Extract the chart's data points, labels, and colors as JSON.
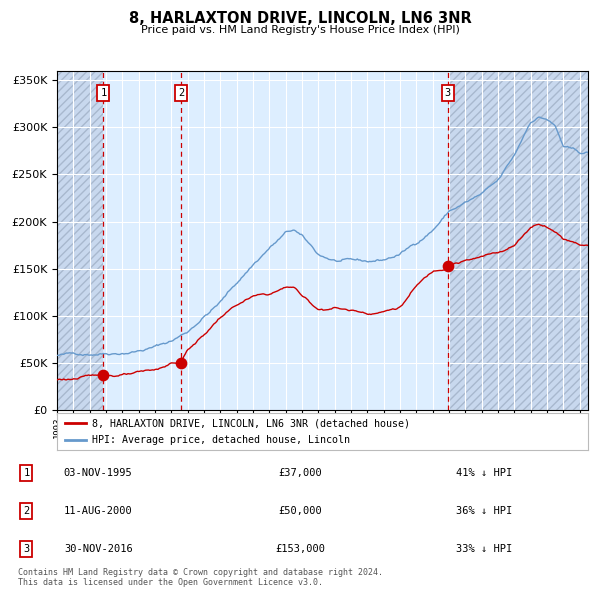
{
  "title": "8, HARLAXTON DRIVE, LINCOLN, LN6 3NR",
  "subtitle": "Price paid vs. HM Land Registry's House Price Index (HPI)",
  "purchases": [
    {
      "num": 1,
      "date": "03-NOV-1995",
      "price": 37000,
      "label": "41% ↓ HPI",
      "x_year": 1995.84
    },
    {
      "num": 2,
      "date": "11-AUG-2000",
      "price": 50000,
      "label": "36% ↓ HPI",
      "x_year": 2000.61
    },
    {
      "num": 3,
      "date": "30-NOV-2016",
      "price": 153000,
      "label": "33% ↓ HPI",
      "x_year": 2016.91
    }
  ],
  "legend_property": "8, HARLAXTON DRIVE, LINCOLN, LN6 3NR (detached house)",
  "legend_hpi": "HPI: Average price, detached house, Lincoln",
  "footer1": "Contains HM Land Registry data © Crown copyright and database right 2024.",
  "footer2": "This data is licensed under the Open Government Licence v3.0.",
  "property_color": "#cc0000",
  "hpi_color": "#6699cc",
  "vline_color": "#cc0000",
  "bg_color": "#ddeeff",
  "grid_color": "#ffffff",
  "ylim": [
    0,
    360000
  ],
  "xlim_start": 1993,
  "xlim_end": 2025.5,
  "yticks": [
    0,
    50000,
    100000,
    150000,
    200000,
    250000,
    300000,
    350000
  ],
  "hpi_control_x": [
    1993,
    1994,
    1995,
    1996,
    1997,
    1998,
    1999,
    2000,
    2001,
    2002,
    2003,
    2004,
    2005,
    2006,
    2007,
    2007.5,
    2008,
    2009,
    2010,
    2011,
    2012,
    2013,
    2014,
    2015,
    2016,
    2017,
    2018,
    2019,
    2020,
    2021,
    2022,
    2022.5,
    2023,
    2023.5,
    2024,
    2025
  ],
  "hpi_control_y": [
    58000,
    59000,
    60500,
    63000,
    65000,
    68000,
    72000,
    78000,
    88000,
    105000,
    120000,
    140000,
    160000,
    178000,
    193000,
    196000,
    188000,
    168000,
    162000,
    160000,
    158000,
    160000,
    166000,
    178000,
    193000,
    213000,
    222000,
    230000,
    242000,
    268000,
    305000,
    310000,
    308000,
    300000,
    278000,
    270000
  ],
  "prop_control_x": [
    1993,
    1995.0,
    1995.84,
    1996,
    1997,
    1998,
    1999,
    2000,
    2000.61,
    2001,
    2002,
    2003,
    2004,
    2005,
    2006,
    2007,
    2007.5,
    2008,
    2009,
    2010,
    2011,
    2012,
    2013,
    2014,
    2015,
    2016,
    2016.91,
    2017,
    2018,
    2019,
    2020,
    2021,
    2022,
    2022.5,
    2023,
    2023.5,
    2024,
    2025
  ],
  "prop_control_y": [
    32000,
    35000,
    37000,
    37500,
    38000,
    38500,
    40000,
    48000,
    50000,
    62000,
    78000,
    97000,
    110000,
    118000,
    120000,
    127000,
    128000,
    118000,
    104000,
    107000,
    104000,
    102000,
    105000,
    110000,
    132000,
    147000,
    153000,
    158000,
    162000,
    165000,
    170000,
    178000,
    198000,
    202000,
    200000,
    195000,
    188000,
    183000
  ]
}
